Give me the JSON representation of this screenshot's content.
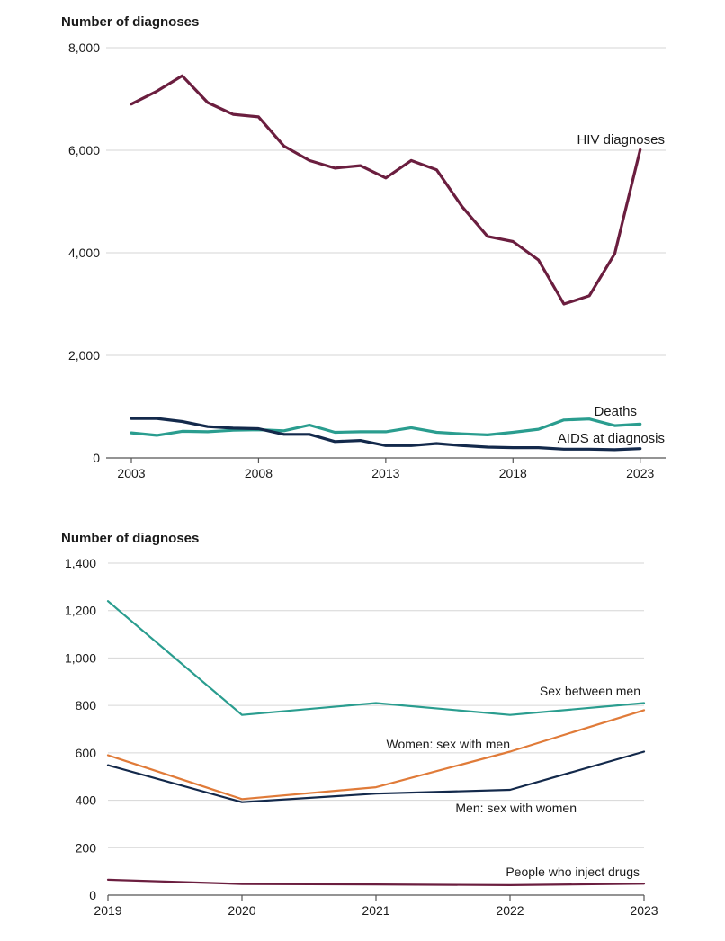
{
  "chart_data": [
    {
      "type": "line",
      "ylabel": "Number of diagnoses",
      "ylim": [
        0,
        8000
      ],
      "xlim": [
        2003,
        2024
      ],
      "yticks": [
        "0",
        "2,000",
        "4,000",
        "6,000",
        "8,000"
      ],
      "xticks": [
        "2003",
        "2008",
        "2013",
        "2018",
        "2023"
      ],
      "grid": true,
      "x": [
        2003,
        2004,
        2005,
        2006,
        2007,
        2008,
        2009,
        2010,
        2011,
        2012,
        2013,
        2014,
        2015,
        2016,
        2017,
        2018,
        2019,
        2020,
        2021,
        2022,
        2023
      ],
      "series": [
        {
          "name": "HIV diagnoses",
          "color": "#6b1e3f",
          "values": [
            6900,
            7150,
            7450,
            6930,
            6700,
            6650,
            6080,
            5800,
            5650,
            5700,
            5460,
            5800,
            5620,
            4900,
            4320,
            4220,
            3860,
            3000,
            3160,
            3980,
            6010
          ]
        },
        {
          "name": "Deaths",
          "color": "#2a9d8f",
          "values": [
            490,
            440,
            520,
            510,
            540,
            550,
            530,
            640,
            500,
            510,
            510,
            590,
            500,
            470,
            450,
            500,
            560,
            740,
            760,
            630,
            660
          ]
        },
        {
          "name": "AIDS at diagnosis",
          "color": "#13294b",
          "values": [
            770,
            770,
            710,
            610,
            580,
            570,
            460,
            460,
            320,
            340,
            240,
            240,
            280,
            240,
            210,
            200,
            200,
            170,
            170,
            160,
            180
          ]
        }
      ]
    },
    {
      "type": "line",
      "ylabel": "Number of diagnoses",
      "ylim": [
        0,
        1400
      ],
      "xlim": [
        2019,
        2023
      ],
      "yticks": [
        "0",
        "200",
        "400",
        "600",
        "800",
        "1,000",
        "1,200",
        "1,400"
      ],
      "xticks": [
        "2019",
        "2020",
        "2021",
        "2022",
        "2023"
      ],
      "grid": true,
      "x": [
        2019,
        2020,
        2021,
        2022,
        2023
      ],
      "series": [
        {
          "name": "Sex between men",
          "color": "#2a9d8f",
          "values": [
            1240,
            760,
            810,
            760,
            810
          ]
        },
        {
          "name": "Women: sex with men",
          "color": "#e07b39",
          "values": [
            590,
            405,
            455,
            605,
            780
          ]
        },
        {
          "name": "Men: sex with women",
          "color": "#13294b",
          "values": [
            548,
            392,
            428,
            444,
            605
          ]
        },
        {
          "name": "People who inject drugs",
          "color": "#6b1e3f",
          "values": [
            65,
            47,
            45,
            42,
            48
          ]
        }
      ]
    }
  ]
}
